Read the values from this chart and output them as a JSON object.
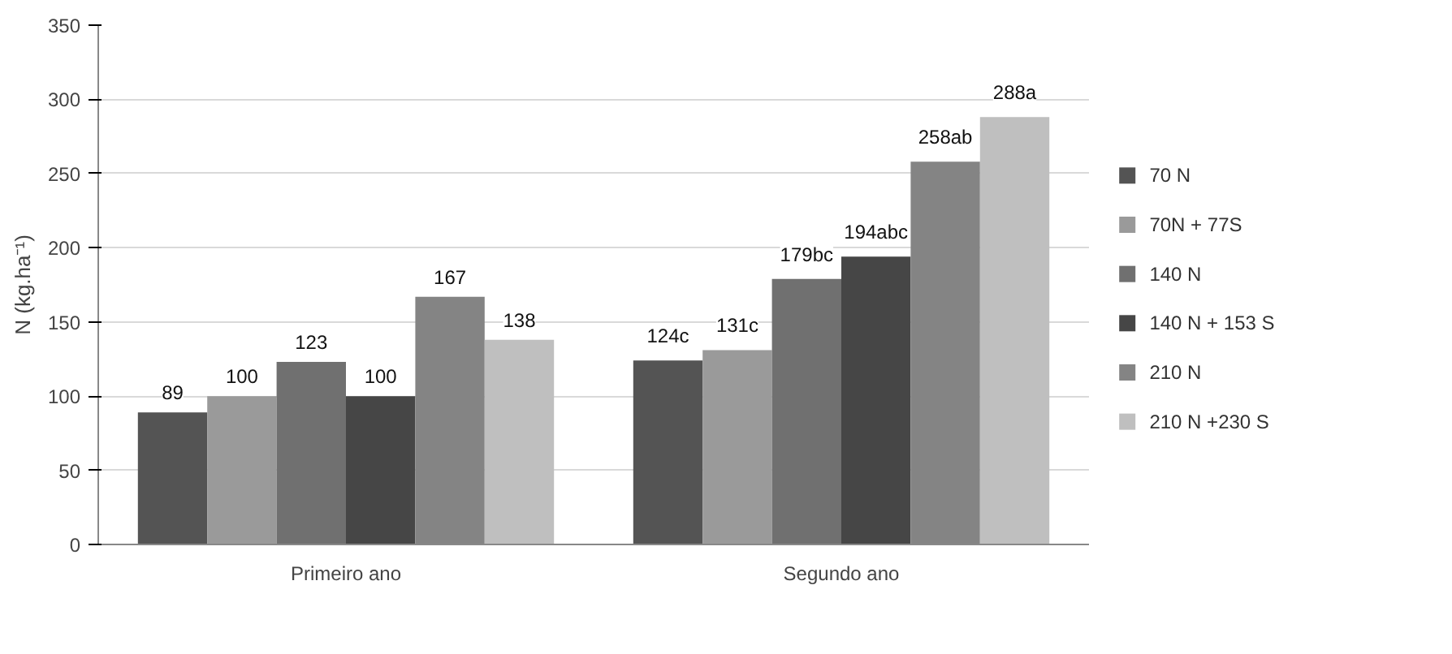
{
  "chart_data": {
    "type": "bar",
    "ylabel": "N (kg.ha⁻¹)",
    "categories": [
      "Primeiro ano",
      "Segundo ano"
    ],
    "series": [
      {
        "name": "70 N",
        "color": "#545454",
        "values": [
          89,
          124
        ],
        "value_labels": [
          "89",
          "124c"
        ]
      },
      {
        "name": "70N + 77S",
        "color": "#9a9a9a",
        "values": [
          100,
          131
        ],
        "value_labels": [
          "100",
          "131c"
        ]
      },
      {
        "name": "140 N",
        "color": "#707070",
        "values": [
          123,
          179
        ],
        "value_labels": [
          "123",
          "179bc"
        ]
      },
      {
        "name": "140 N + 153 S",
        "color": "#464646",
        "values": [
          100,
          194
        ],
        "value_labels": [
          "100",
          "194abc"
        ]
      },
      {
        "name": "210 N",
        "color": "#848484",
        "values": [
          167,
          258
        ],
        "value_labels": [
          "167",
          "258ab"
        ]
      },
      {
        "name": "210 N +230 S",
        "color": "#bfbfbf",
        "values": [
          138,
          288
        ],
        "value_labels": [
          "138",
          "288a"
        ]
      }
    ],
    "ylim": [
      0,
      350
    ],
    "yticks": [
      0,
      50,
      100,
      150,
      200,
      250,
      300,
      350
    ],
    "grid": "y",
    "legend": "right"
  }
}
